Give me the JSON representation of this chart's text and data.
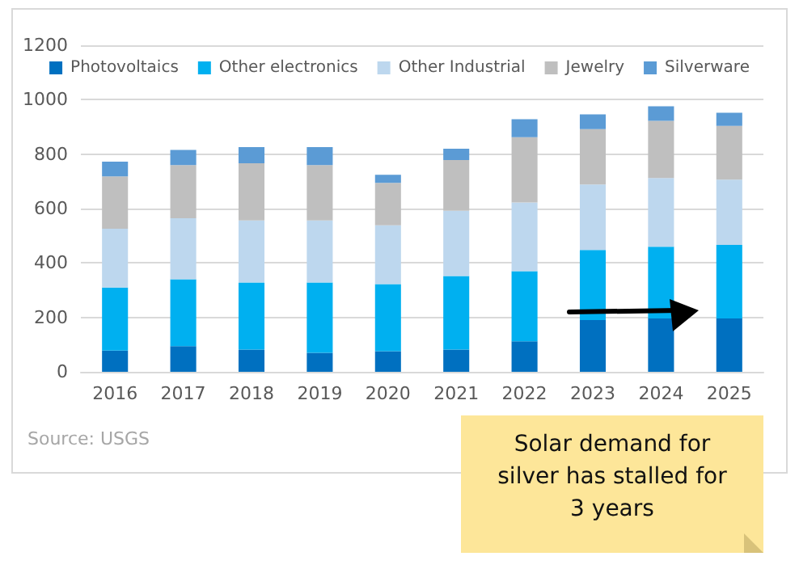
{
  "chart_data": {
    "type": "bar",
    "stacked": true,
    "categories": [
      "2016",
      "2017",
      "2018",
      "2019",
      "2020",
      "2021",
      "2022",
      "2023",
      "2024",
      "2025"
    ],
    "series": [
      {
        "name": "Photovoltaics",
        "color": "#0070c0",
        "values": [
          78,
          94,
          82,
          70,
          76,
          82,
          112,
          190,
          196,
          196
        ]
      },
      {
        "name": "Other electronics",
        "color": "#00b0f0",
        "values": [
          232,
          246,
          246,
          258,
          246,
          270,
          258,
          258,
          264,
          270
        ]
      },
      {
        "name": "Other Industrial",
        "color": "#bdd7ee",
        "values": [
          216,
          224,
          228,
          228,
          216,
          240,
          252,
          240,
          252,
          240
        ]
      },
      {
        "name": "Jewelry",
        "color": "#bfbfbf",
        "values": [
          192,
          196,
          210,
          204,
          156,
          186,
          240,
          204,
          210,
          198
        ]
      },
      {
        "name": "Silverware",
        "color": "#5b9bd5",
        "values": [
          54,
          55,
          60,
          66,
          30,
          42,
          66,
          54,
          54,
          48
        ]
      }
    ],
    "ylim": [
      0,
      1200
    ],
    "yticks": [
      0,
      200,
      400,
      600,
      800,
      1000,
      1200
    ],
    "grid": "y",
    "legend": "top",
    "annotations": [
      "Source: USGS",
      "Solar demand for silver has stalled for 3 years"
    ]
  }
}
